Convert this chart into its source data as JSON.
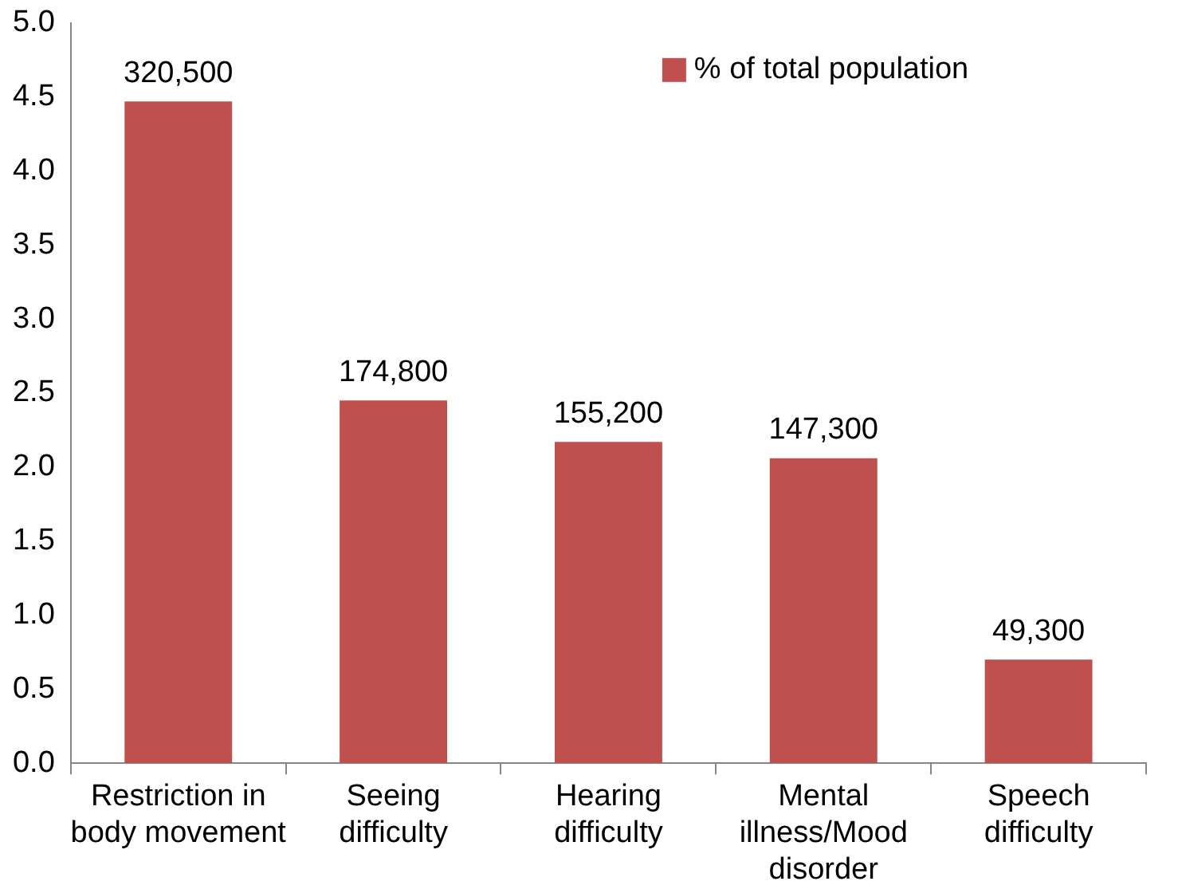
{
  "chart_data": {
    "type": "bar",
    "categories": [
      "Restriction in body movement",
      "Seeing difficulty",
      "Hearing difficulty",
      "Mental illness/Mood disorder",
      "Speech difficulty"
    ],
    "series": [
      {
        "name": "% of total population",
        "color": "#c0504d",
        "values": [
          4.47,
          2.45,
          2.17,
          2.06,
          0.7
        ]
      }
    ],
    "annotations": [
      {
        "text": "320,500",
        "x": "Restriction in body movement",
        "y": 4.47
      },
      {
        "text": "174,800",
        "x": "Seeing difficulty",
        "y": 2.45
      },
      {
        "text": "155,200",
        "x": "Hearing difficulty",
        "y": 2.17
      },
      {
        "text": "147,300",
        "x": "Mental illness/Mood disorder",
        "y": 2.06
      },
      {
        "text": "49,300",
        "x": "Speech difficulty",
        "y": 0.7
      }
    ],
    "ylim": [
      0,
      5
    ],
    "yticks": [
      {
        "value": 0,
        "label": "0.0"
      },
      {
        "value": 0.5,
        "label": "0.5"
      },
      {
        "value": 1,
        "label": "1.0"
      },
      {
        "value": 1.5,
        "label": "1.5"
      },
      {
        "value": 2,
        "label": "2.0"
      },
      {
        "value": 2.5,
        "label": "2.5"
      },
      {
        "value": 3,
        "label": "3.0"
      },
      {
        "value": 3.5,
        "label": "3.5"
      },
      {
        "value": 4,
        "label": "4.0"
      },
      {
        "value": 4.5,
        "label": "4.5"
      },
      {
        "value": 5,
        "label": "5.0"
      }
    ],
    "grid": false,
    "legend": "top right"
  }
}
